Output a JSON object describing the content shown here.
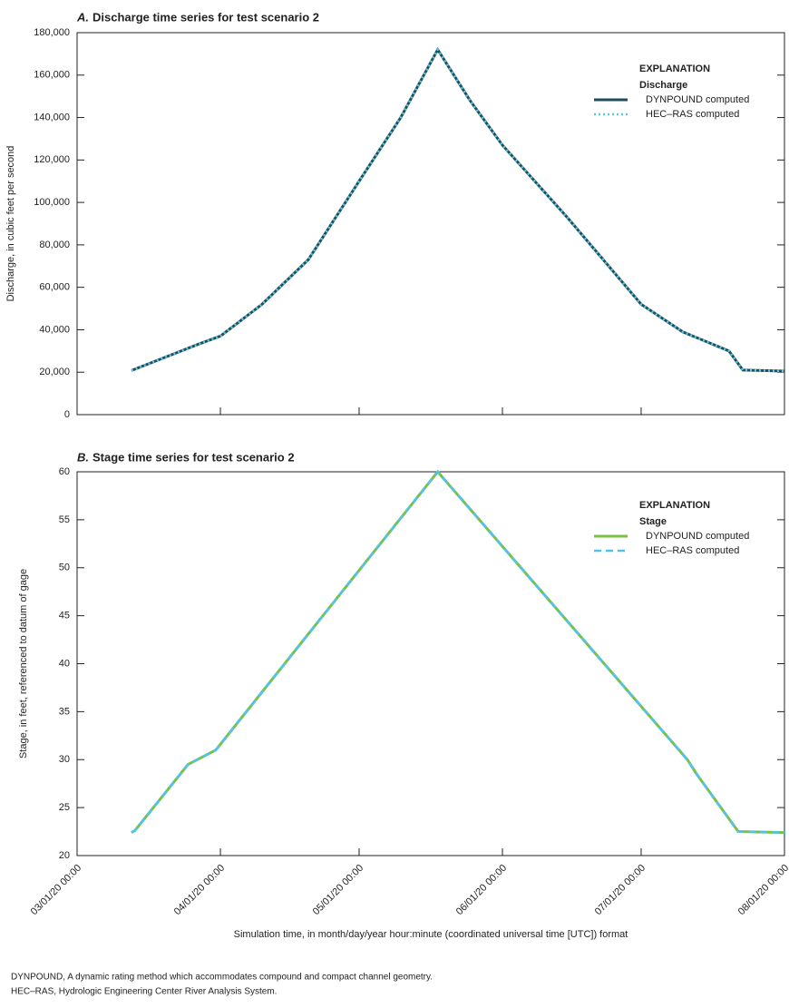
{
  "shared_x": {
    "label": "Simulation time, in month/day/year hour:minute (coordinated universal time [UTC]) format",
    "xlim": [
      "03/01/20 00:00",
      "08/01/20 00:00"
    ],
    "xticks": [
      "03/01/20 00:00",
      "04/01/20 00:00",
      "05/01/20 00:00",
      "06/01/20 00:00",
      "07/01/20 00:00",
      "08/01/20 00:00"
    ]
  },
  "chart_data": [
    {
      "type": "line",
      "panel": "A.",
      "title": "Discharge time series for test scenario 2",
      "y_label": "Discharge, in cubic feet per second",
      "legend_title": "EXPLANATION",
      "legend_subtitle": "Discharge",
      "legend": "upper right",
      "ylim": [
        0,
        180000
      ],
      "yticks": [
        0,
        {
          "value": 20000,
          "label": "20,000"
        },
        {
          "value": 40000,
          "label": "40,000"
        },
        {
          "value": 60000,
          "label": "60,000"
        },
        {
          "value": 80000,
          "label": "80,000"
        },
        {
          "value": 100000,
          "label": "100,000"
        },
        {
          "value": 120000,
          "label": "120,000"
        },
        {
          "value": 140000,
          "label": "140,000"
        },
        {
          "value": 160000,
          "label": "160,000"
        },
        {
          "value": 180000,
          "label": "180,000"
        }
      ],
      "x": [
        "03/12/20 18:00",
        "03/20/20 00:00",
        "03/27/20 00:00",
        "04/01/20 00:00",
        "04/10/20 00:00",
        "04/20/20 00:00",
        "05/01/20 00:00",
        "05/10/20 00:00",
        "05/18/20 00:00",
        "05/25/20 00:00",
        "06/01/20 00:00",
        "06/15/20 00:00",
        "07/01/20 00:00",
        "07/10/20 00:00",
        "07/20/20 00:00",
        "07/23/20 00:00",
        "08/01/20 00:00"
      ],
      "series": [
        {
          "name": "DYNPOUND computed",
          "color": "#1f4e5a",
          "style": "solid",
          "values": [
            20800,
            27000,
            33000,
            37000,
            52000,
            73000,
            110000,
            140000,
            172000,
            148000,
            127000,
            93000,
            52000,
            39000,
            30000,
            21000,
            20500
          ]
        },
        {
          "name": "HEC–RAS computed",
          "color": "#5bc8e8",
          "style": "dotted",
          "values": [
            20800,
            27000,
            33000,
            37000,
            52000,
            73000,
            110000,
            140000,
            172000,
            148000,
            127000,
            93000,
            52000,
            39000,
            30000,
            21000,
            20500
          ]
        }
      ]
    },
    {
      "type": "line",
      "panel": "B.",
      "title": "Stage time series for test scenario 2",
      "y_label": "Stage, in feet, referenced to datum of gage",
      "legend_title": "EXPLANATION",
      "legend_subtitle": "Stage",
      "legend": "upper right",
      "ylim": [
        20,
        60
      ],
      "yticks": [
        20,
        25,
        30,
        35,
        40,
        45,
        50,
        55,
        60
      ],
      "x": [
        "03/12/20 18:00",
        "03/13/20 12:00",
        "03/25/20 00:00",
        "03/31/20 00:00",
        "05/18/20 00:00",
        "07/11/20 00:00",
        "07/13/20 00:00",
        "07/22/20 00:00",
        "08/01/20 00:00"
      ],
      "series": [
        {
          "name": "DYNPOUND computed",
          "color": "#7ac143",
          "style": "solid",
          "values": [
            22.4,
            22.6,
            29.5,
            31,
            60,
            30,
            28.5,
            22.5,
            22.4
          ]
        },
        {
          "name": "HEC–RAS computed",
          "color": "#4fc3f0",
          "style": "dashed",
          "values": [
            22.4,
            22.6,
            29.5,
            31,
            60,
            30,
            28.5,
            22.5,
            22.4
          ]
        }
      ]
    }
  ],
  "notes": [
    "DYNPOUND, A dynamic rating method which accommodates compound and compact channel geometry.",
    "HEC–RAS, Hydrologic Engineering Center River Analysis System."
  ]
}
